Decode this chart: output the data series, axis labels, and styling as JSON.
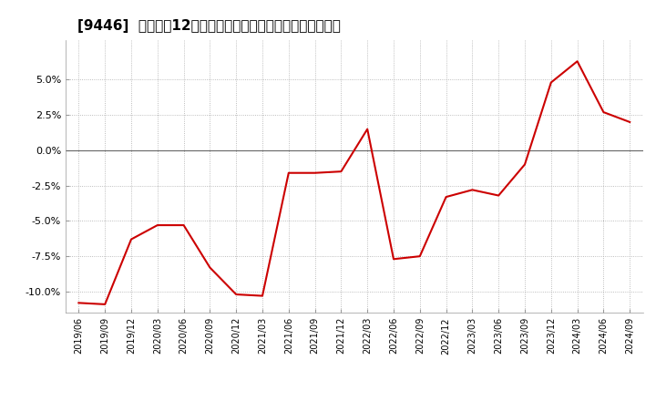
{
  "title": "[9446]  売上高の12か月移動合計の対前年同期増減率の推移",
  "line_color": "#cc0000",
  "bg_color": "#ffffff",
  "plot_bg_color": "#ffffff",
  "grid_color": "#aaaaaa",
  "zero_line_color": "#666666",
  "ylim": [
    -0.115,
    0.078
  ],
  "yticks": [
    -0.1,
    -0.075,
    -0.05,
    -0.025,
    0.0,
    0.025,
    0.05
  ],
  "ytick_labels": [
    "-10.0%",
    "-7.5%",
    "-5.0%",
    "-2.5%",
    "0.0%",
    "2.5%",
    "5.0%"
  ],
  "dates": [
    "2019/06",
    "2019/09",
    "2019/12",
    "2020/03",
    "2020/06",
    "2020/09",
    "2020/12",
    "2021/03",
    "2021/06",
    "2021/09",
    "2021/12",
    "2022/03",
    "2022/06",
    "2022/09",
    "2022/12",
    "2023/03",
    "2023/06",
    "2023/09",
    "2023/12",
    "2024/03",
    "2024/06",
    "2024/09"
  ],
  "values": [
    -0.108,
    -0.109,
    -0.063,
    -0.053,
    -0.053,
    -0.083,
    -0.102,
    -0.103,
    -0.016,
    -0.016,
    -0.015,
    0.015,
    -0.077,
    -0.075,
    -0.033,
    -0.028,
    -0.032,
    -0.01,
    0.048,
    0.063,
    0.027,
    0.02
  ],
  "title_fontsize": 11,
  "tick_fontsize": 8,
  "linewidth": 1.5
}
